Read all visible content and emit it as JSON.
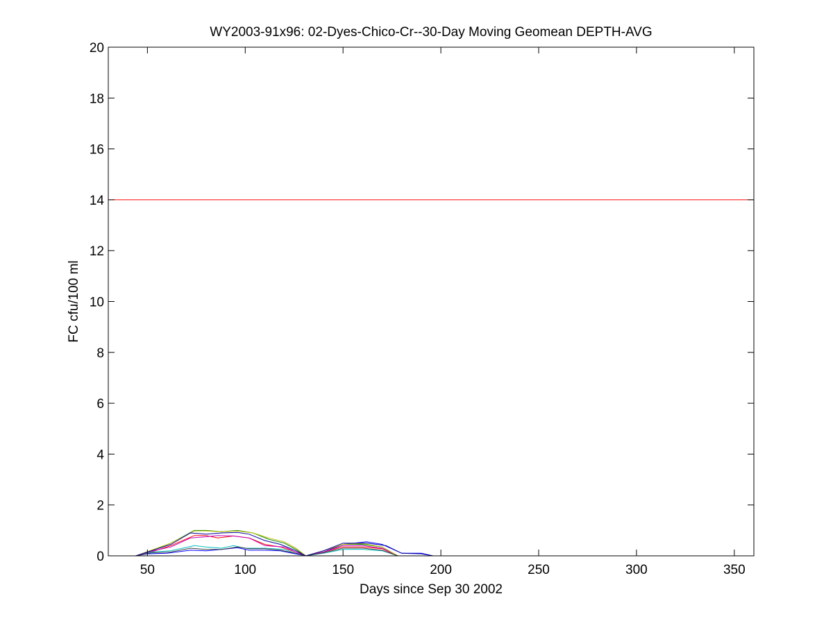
{
  "chart_data": {
    "type": "line",
    "title": "WY2003-91x96: 02-Dyes-Chico-Cr--30-Day Moving Geomean DEPTH-AVG",
    "xlabel": "Days since Sep 30 2002",
    "ylabel": "FC cfu/100 ml",
    "xlim": [
      30,
      360
    ],
    "ylim": [
      0,
      20
    ],
    "xticks": [
      50,
      100,
      150,
      200,
      250,
      300,
      350
    ],
    "yticks": [
      0,
      2,
      4,
      6,
      8,
      10,
      12,
      14,
      16,
      18,
      20
    ],
    "grid": false,
    "legend": "none",
    "reference_line": {
      "y": 14,
      "color": "#ff0000"
    },
    "series": [
      {
        "color": "#0000ff",
        "x": [
          44,
          50,
          60,
          72,
          80,
          88,
          96,
          102,
          110,
          118,
          124,
          131,
          140,
          150,
          162,
          170,
          180,
          190,
          196
        ],
        "y": [
          0,
          0.08,
          0.1,
          0.22,
          0.2,
          0.25,
          0.32,
          0.22,
          0.22,
          0.2,
          0.1,
          0,
          0.15,
          0.45,
          0.55,
          0.45,
          0.1,
          0.1,
          0
        ]
      },
      {
        "color": "#008000",
        "x": [
          44,
          52,
          62,
          74,
          80,
          88,
          96,
          104,
          112,
          120,
          126,
          131,
          140,
          150,
          160,
          170,
          178
        ],
        "y": [
          0,
          0.2,
          0.5,
          1.0,
          1.0,
          0.95,
          1.0,
          0.9,
          0.65,
          0.5,
          0.25,
          0,
          0.2,
          0.45,
          0.45,
          0.35,
          0
        ]
      },
      {
        "color": "#ff0000",
        "x": [
          44,
          52,
          62,
          74,
          80,
          86,
          94,
          102,
          110,
          118,
          126,
          131,
          140,
          150,
          160,
          170,
          178
        ],
        "y": [
          0,
          0.15,
          0.4,
          0.8,
          0.8,
          0.7,
          0.78,
          0.7,
          0.45,
          0.35,
          0.15,
          0,
          0.15,
          0.35,
          0.35,
          0.28,
          0
        ]
      },
      {
        "color": "#00bfbf",
        "x": [
          44,
          52,
          62,
          74,
          80,
          88,
          94,
          100,
          110,
          120,
          126,
          131,
          140,
          150,
          160,
          170,
          178
        ],
        "y": [
          0,
          0.15,
          0.2,
          0.4,
          0.35,
          0.3,
          0.4,
          0.3,
          0.3,
          0.25,
          0.1,
          0,
          0.1,
          0.25,
          0.25,
          0.2,
          0
        ]
      },
      {
        "color": "#bf00bf",
        "x": [
          44,
          52,
          62,
          72,
          80,
          86,
          94,
          102,
          110,
          120,
          126,
          131,
          140,
          150,
          160,
          170,
          178
        ],
        "y": [
          0,
          0.18,
          0.35,
          0.7,
          0.75,
          0.8,
          0.78,
          0.7,
          0.4,
          0.35,
          0.15,
          0,
          0.15,
          0.4,
          0.4,
          0.3,
          0
        ]
      },
      {
        "color": "#bfbf00",
        "x": [
          44,
          52,
          62,
          74,
          80,
          88,
          96,
          104,
          112,
          120,
          126,
          131,
          140,
          150,
          160,
          170,
          178
        ],
        "y": [
          0,
          0.22,
          0.5,
          0.98,
          0.98,
          0.95,
          0.98,
          0.9,
          0.7,
          0.55,
          0.3,
          0,
          0.2,
          0.45,
          0.48,
          0.35,
          0
        ]
      },
      {
        "color": "#404040",
        "x": [
          44,
          52,
          62,
          72,
          80,
          88,
          96,
          102,
          110,
          118,
          126,
          131,
          140,
          150,
          160,
          170,
          178
        ],
        "y": [
          0,
          0.12,
          0.15,
          0.3,
          0.25,
          0.25,
          0.35,
          0.28,
          0.28,
          0.22,
          0.1,
          0,
          0.12,
          0.3,
          0.3,
          0.22,
          0
        ]
      },
      {
        "color": "#0000a0",
        "x": [
          44,
          52,
          62,
          72,
          80,
          88,
          96,
          102,
          110,
          118,
          126,
          131,
          140,
          150,
          162,
          172,
          180,
          190,
          196
        ],
        "y": [
          0,
          0.2,
          0.45,
          0.9,
          0.85,
          0.9,
          0.92,
          0.85,
          0.6,
          0.45,
          0.2,
          0,
          0.2,
          0.5,
          0.5,
          0.4,
          0.1,
          0.08,
          0
        ]
      }
    ]
  }
}
